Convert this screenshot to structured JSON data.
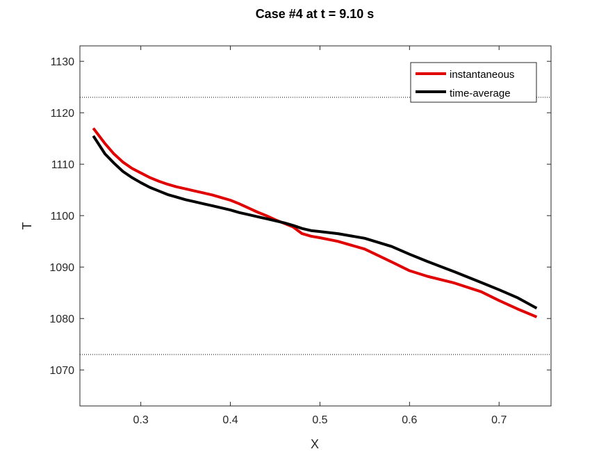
{
  "chart_data": {
    "type": "line",
    "title": "Case #4 at t =  9.10 s",
    "xlabel": "X",
    "ylabel": "T",
    "xlim": [
      0.232,
      0.758
    ],
    "ylim": [
      1063,
      1133
    ],
    "xticks": [
      0.3,
      0.4,
      0.5,
      0.6,
      0.7
    ],
    "yticks": [
      1070,
      1080,
      1090,
      1100,
      1110,
      1120,
      1130
    ],
    "grid": false,
    "legend_position": "top-right",
    "reference_lines": [
      {
        "y": 1123,
        "style": "dotted",
        "color": "#000000"
      },
      {
        "y": 1073,
        "style": "dotted",
        "color": "#000000"
      }
    ],
    "series": [
      {
        "name": "instantaneous",
        "color": "#e00000",
        "x": [
          0.247,
          0.26,
          0.27,
          0.28,
          0.29,
          0.3,
          0.31,
          0.32,
          0.33,
          0.34,
          0.35,
          0.36,
          0.37,
          0.38,
          0.39,
          0.4,
          0.41,
          0.42,
          0.43,
          0.44,
          0.45,
          0.46,
          0.47,
          0.48,
          0.49,
          0.5,
          0.52,
          0.55,
          0.58,
          0.6,
          0.62,
          0.65,
          0.68,
          0.7,
          0.72,
          0.742
        ],
        "values": [
          1117,
          1114,
          1112,
          1110.4,
          1109.2,
          1108.3,
          1107.4,
          1106.7,
          1106.1,
          1105.6,
          1105.2,
          1104.8,
          1104.4,
          1104,
          1103.5,
          1103,
          1102.3,
          1101.5,
          1100.7,
          1100,
          1099.2,
          1098.5,
          1097.8,
          1096.5,
          1096,
          1095.7,
          1095,
          1093.5,
          1091,
          1089.3,
          1088.2,
          1086.9,
          1085.2,
          1083.5,
          1081.9,
          1080.3
        ]
      },
      {
        "name": "time-average",
        "color": "#000000",
        "x": [
          0.247,
          0.26,
          0.27,
          0.28,
          0.29,
          0.3,
          0.31,
          0.32,
          0.33,
          0.34,
          0.35,
          0.36,
          0.37,
          0.38,
          0.39,
          0.4,
          0.41,
          0.42,
          0.43,
          0.44,
          0.45,
          0.46,
          0.47,
          0.48,
          0.49,
          0.5,
          0.52,
          0.55,
          0.58,
          0.6,
          0.62,
          0.65,
          0.68,
          0.7,
          0.72,
          0.742
        ],
        "values": [
          1115.5,
          1112,
          1110.2,
          1108.6,
          1107.4,
          1106.4,
          1105.5,
          1104.8,
          1104.1,
          1103.6,
          1103.1,
          1102.7,
          1102.3,
          1101.9,
          1101.5,
          1101.1,
          1100.6,
          1100.2,
          1099.8,
          1099.4,
          1099,
          1098.6,
          1098.1,
          1097.5,
          1097.1,
          1096.9,
          1096.5,
          1095.6,
          1094,
          1092.5,
          1091.1,
          1089.1,
          1087,
          1085.6,
          1084.1,
          1082
        ]
      }
    ]
  }
}
